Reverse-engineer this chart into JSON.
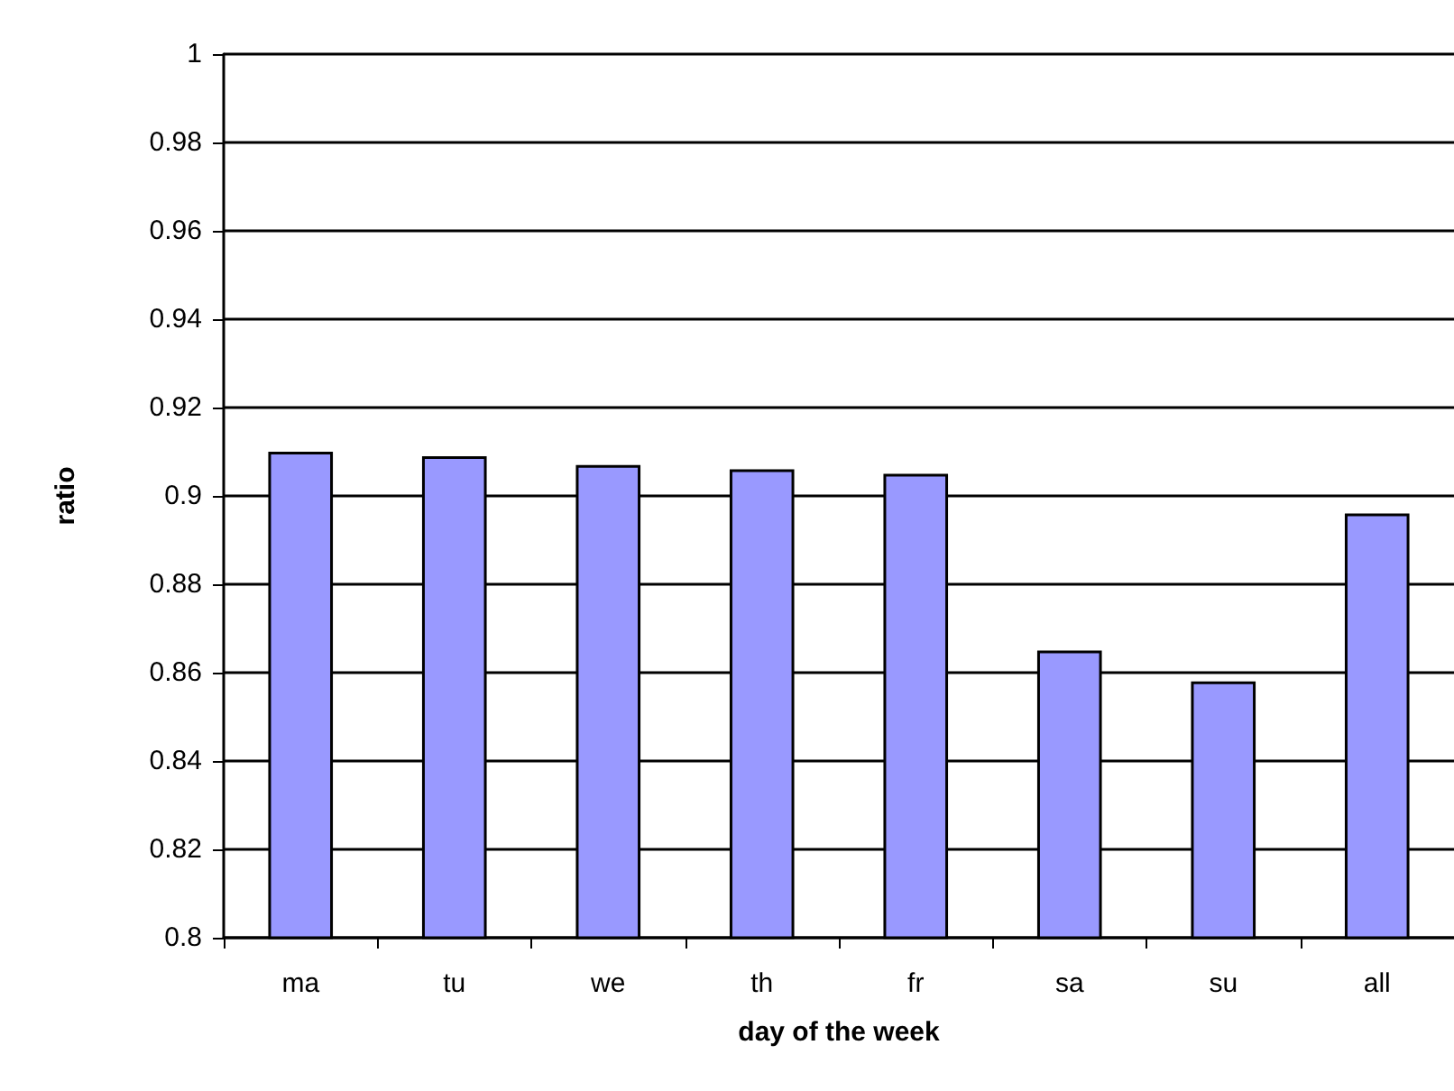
{
  "chart_data": {
    "type": "bar",
    "xlabel": "day of the week",
    "ylabel": "ratio",
    "categories": [
      "ma",
      "tu",
      "we",
      "th",
      "fr",
      "sa",
      "su",
      "all"
    ],
    "values": [
      0.91,
      0.909,
      0.907,
      0.906,
      0.905,
      0.865,
      0.858,
      0.896
    ],
    "color": "#9999ff",
    "ylim": [
      0.8,
      1
    ],
    "yticks": [
      0.8,
      0.82,
      0.84,
      0.86,
      0.88,
      0.9,
      0.92,
      0.94,
      0.96,
      0.98,
      1
    ],
    "grid": "y"
  }
}
